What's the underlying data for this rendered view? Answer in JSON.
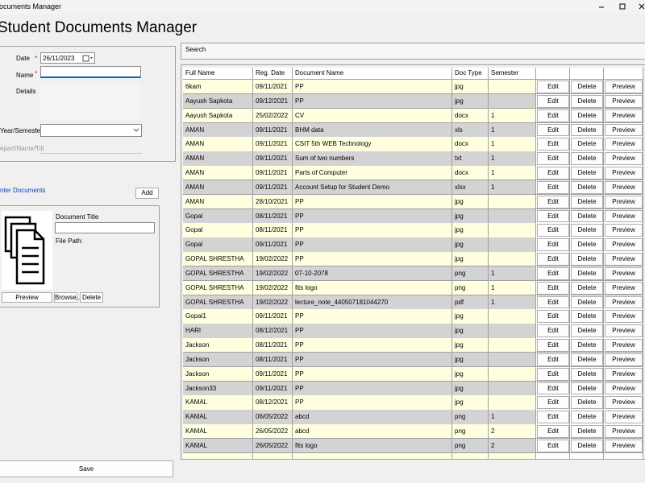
{
  "window": {
    "title": "ocuments Manager"
  },
  "header": {
    "title": "Student Documents Manager"
  },
  "form": {
    "date_label": "Date",
    "date_value": "26/11/2023",
    "name_label": "Name",
    "details_label": "Details",
    "year_label": "Year/Semester",
    "depart_label": "epart/Name/Titl",
    "required": "*",
    "enter_link": "nter Documents",
    "add_button": "Add"
  },
  "document": {
    "title_label": "Document Title",
    "path_label": "File Path:",
    "preview_button": "Preview",
    "browse_button": "Browse..",
    "delete_button": "Delete"
  },
  "save_button": "Save",
  "search": {
    "label": "Search"
  },
  "table": {
    "columns": [
      "Full Name",
      "Reg. Date",
      "Document Name",
      "Doc Type",
      "Semester"
    ],
    "row_buttons": [
      "Edit",
      "Delete",
      "Preview"
    ],
    "rows": [
      [
        "6kam",
        "09/11/2021",
        "PP",
        "jpg"
      ],
      [
        "Aayush Sapkota",
        "09/12/2021",
        "PP",
        "jpg"
      ],
      [
        "Aayush Sapkota",
        "25/02/2022",
        "CV",
        "docx",
        "1"
      ],
      [
        "AMAN",
        "09/11/2021",
        "BHM data",
        "xls",
        "1"
      ],
      [
        "AMAN",
        "09/11/2021",
        "CSIT 5th WEB Technology",
        "docx",
        "1"
      ],
      [
        "AMAN",
        "09/11/2021",
        "Sum of two numbers",
        "txt",
        "1"
      ],
      [
        "AMAN",
        "09/11/2021",
        "Parts of Computer",
        "docx",
        "1"
      ],
      [
        "AMAN",
        "09/11/2021",
        "Account Setup for Student Demo",
        "xlsx",
        "1"
      ],
      [
        "AMAN",
        "28/10/2021",
        "PP",
        "jpg"
      ],
      [
        "Gopal",
        "08/11/2021",
        "PP",
        "jpg"
      ],
      [
        "Gopal",
        "08/11/2021",
        "PP",
        "jpg"
      ],
      [
        "Gopal",
        "09/11/2021",
        "PP",
        "jpg"
      ],
      [
        "GOPAL SHRESTHA",
        "19/02/2022",
        "PP",
        "jpg"
      ],
      [
        "GOPAL SHRESTHA",
        "19/02/2022",
        "07-10-2078",
        "png",
        "1"
      ],
      [
        "GOPAL SHRESTHA",
        "19/02/2022",
        "fits logo",
        "png",
        "1"
      ],
      [
        "GOPAL SHRESTHA",
        "19/02/2022",
        "lecture_note_440507181044270",
        "pdf",
        "1"
      ],
      [
        "Gopal1",
        "09/11/2021",
        "PP",
        "jpg"
      ],
      [
        "HARI",
        "08/12/2021",
        "PP",
        "jpg"
      ],
      [
        "Jackson",
        "08/11/2021",
        "PP",
        "jpg"
      ],
      [
        "Jackson",
        "08/11/2021",
        "PP",
        "jpg"
      ],
      [
        "Jackson",
        "09/11/2021",
        "PP",
        "jpg"
      ],
      [
        "Jackson33",
        "09/11/2021",
        "PP",
        "jpg"
      ],
      [
        "KAMAL",
        "08/12/2021",
        "PP",
        "jpg"
      ],
      [
        "KAMAL",
        "06/05/2022",
        "abcd",
        "png",
        "1"
      ],
      [
        "KAMAL",
        "26/05/2022",
        "abcd",
        "png",
        "2"
      ],
      [
        "KAMAL",
        "26/05/2022",
        "fits logo",
        "png",
        "2"
      ]
    ]
  }
}
